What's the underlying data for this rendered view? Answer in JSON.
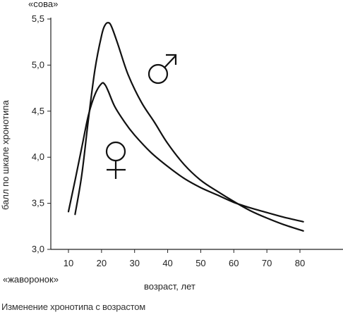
{
  "caption": "Изменение хронотипа с возрастом",
  "chart_data": {
    "type": "line",
    "title": "",
    "xlabel": "возраст, лет",
    "ylabel": "балл по шкале хронотипа",
    "y_top_note": "«сова»",
    "y_bottom_note": "«жаворонок»",
    "xlim": [
      10,
      85
    ],
    "ylim": [
      3.0,
      5.5
    ],
    "x_ticks": [
      10,
      20,
      30,
      40,
      50,
      60,
      70,
      80
    ],
    "y_ticks": [
      "3,0",
      "3,5",
      "4,0",
      "4,5",
      "5,0",
      "5,5"
    ],
    "y_tick_values": [
      3.0,
      3.5,
      4.0,
      4.5,
      5.0,
      5.5
    ],
    "grid": false,
    "legend": "symbols on plot",
    "series": [
      {
        "symbol": "male",
        "x": [
          12,
          14,
          16,
          18,
          20,
          21,
          22,
          23,
          25,
          28,
          32,
          36,
          40,
          45,
          50,
          55,
          60,
          65,
          70,
          75,
          81
        ],
        "y": [
          3.38,
          3.8,
          4.4,
          4.95,
          5.32,
          5.43,
          5.46,
          5.42,
          5.22,
          4.9,
          4.6,
          4.38,
          4.15,
          3.92,
          3.75,
          3.63,
          3.52,
          3.42,
          3.34,
          3.27,
          3.2
        ]
      },
      {
        "symbol": "female",
        "x": [
          10,
          12,
          14,
          16,
          18,
          20,
          21,
          22,
          24,
          27,
          30,
          35,
          40,
          45,
          50,
          55,
          60,
          65,
          70,
          75,
          81
        ],
        "y": [
          3.41,
          3.75,
          4.1,
          4.45,
          4.68,
          4.8,
          4.79,
          4.72,
          4.55,
          4.38,
          4.24,
          4.05,
          3.9,
          3.77,
          3.67,
          3.59,
          3.51,
          3.45,
          3.4,
          3.35,
          3.3
        ]
      }
    ]
  }
}
